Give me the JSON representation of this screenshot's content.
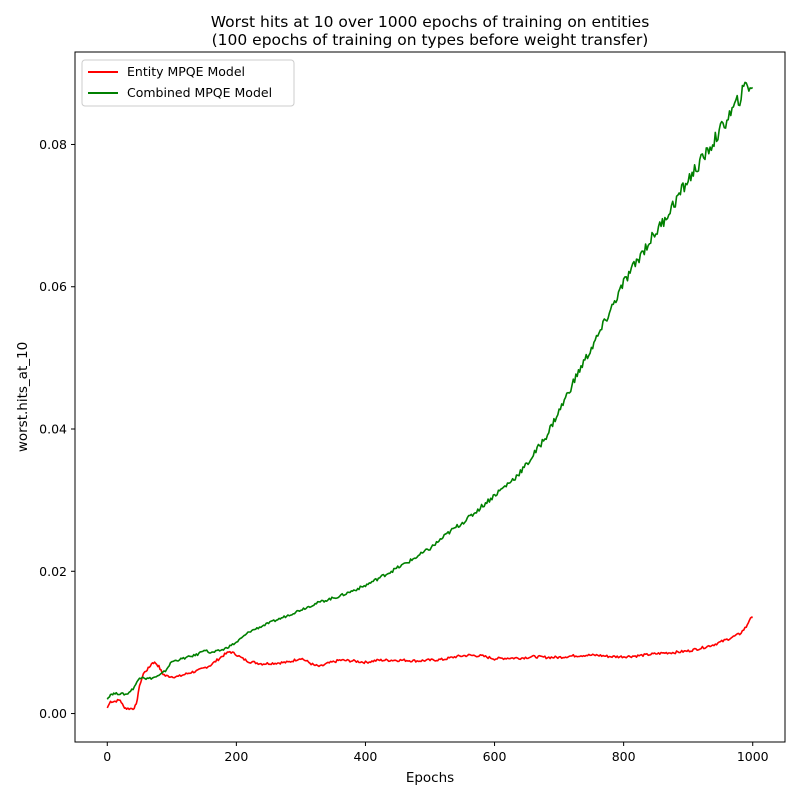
{
  "chart_data": {
    "type": "line",
    "title_line1": "Worst hits at 10 over 1000 epochs of training on entities",
    "title_line2": "(100 epochs of training on types before weight transfer)",
    "xlabel": "Epochs",
    "ylabel": "worst.hits_at_10",
    "xlim": [
      -50,
      1050
    ],
    "ylim": [
      -0.004,
      0.093
    ],
    "x_ticks": [
      0,
      200,
      400,
      600,
      800,
      1000
    ],
    "x_tick_labels": [
      "0",
      "200",
      "400",
      "600",
      "800",
      "1000"
    ],
    "y_ticks": [
      0.0,
      0.02,
      0.04,
      0.06,
      0.08
    ],
    "y_tick_labels": [
      "0.00",
      "0.02",
      "0.04",
      "0.06",
      "0.08"
    ],
    "grid": false,
    "legend_position": "top-left",
    "series": [
      {
        "name": "Entity MPQE Model",
        "color": "#ff0000",
        "x": [
          0,
          5,
          10,
          20,
          25,
          30,
          40,
          45,
          48,
          52,
          56,
          60,
          65,
          70,
          75,
          80,
          85,
          90,
          100,
          110,
          120,
          130,
          140,
          150,
          160,
          170,
          180,
          190,
          200,
          210,
          220,
          240,
          260,
          280,
          300,
          320,
          330,
          340,
          360,
          380,
          400,
          420,
          440,
          460,
          480,
          500,
          520,
          540,
          560,
          580,
          600,
          620,
          640,
          660,
          680,
          700,
          720,
          740,
          760,
          780,
          800,
          820,
          840,
          860,
          880,
          900,
          920,
          940,
          960,
          970,
          980,
          990,
          995,
          1000
        ],
        "values": [
          0.0008,
          0.0017,
          0.0017,
          0.0019,
          0.001,
          0.0007,
          0.0007,
          0.0012,
          0.003,
          0.0045,
          0.0056,
          0.006,
          0.0065,
          0.0072,
          0.0071,
          0.0066,
          0.0057,
          0.0053,
          0.0052,
          0.0052,
          0.0055,
          0.0058,
          0.006,
          0.0064,
          0.0068,
          0.0075,
          0.0082,
          0.0087,
          0.0083,
          0.0077,
          0.0073,
          0.007,
          0.0071,
          0.0072,
          0.0078,
          0.0068,
          0.0066,
          0.007,
          0.0075,
          0.0074,
          0.0072,
          0.0075,
          0.0075,
          0.0075,
          0.0074,
          0.0075,
          0.0076,
          0.008,
          0.0082,
          0.0081,
          0.0077,
          0.0078,
          0.0078,
          0.008,
          0.0079,
          0.0079,
          0.0081,
          0.0082,
          0.0082,
          0.008,
          0.008,
          0.0081,
          0.0083,
          0.0085,
          0.0086,
          0.0088,
          0.0092,
          0.0097,
          0.0104,
          0.0108,
          0.0112,
          0.0122,
          0.0132,
          0.0135
        ]
      },
      {
        "name": "Combined MPQE Model",
        "color": "#008000",
        "x": [
          0,
          5,
          10,
          20,
          30,
          40,
          50,
          55,
          60,
          70,
          80,
          90,
          100,
          120,
          140,
          150,
          160,
          180,
          200,
          220,
          250,
          280,
          300,
          330,
          360,
          400,
          440,
          470,
          500,
          530,
          560,
          600,
          630,
          650,
          680,
          700,
          730,
          760,
          800,
          830,
          860,
          900,
          930,
          960,
          980,
          990,
          1000
        ],
        "values": [
          0.002,
          0.0027,
          0.0028,
          0.0028,
          0.0027,
          0.0035,
          0.005,
          0.0052,
          0.0049,
          0.005,
          0.0053,
          0.006,
          0.0073,
          0.0078,
          0.0083,
          0.009,
          0.0085,
          0.009,
          0.01,
          0.0115,
          0.0127,
          0.0138,
          0.0146,
          0.0157,
          0.0165,
          0.018,
          0.02,
          0.0215,
          0.0232,
          0.0255,
          0.0275,
          0.0307,
          0.033,
          0.035,
          0.039,
          0.0425,
          0.048,
          0.053,
          0.0605,
          0.065,
          0.069,
          0.075,
          0.079,
          0.0835,
          0.0865,
          0.0885,
          0.088
        ]
      }
    ]
  }
}
